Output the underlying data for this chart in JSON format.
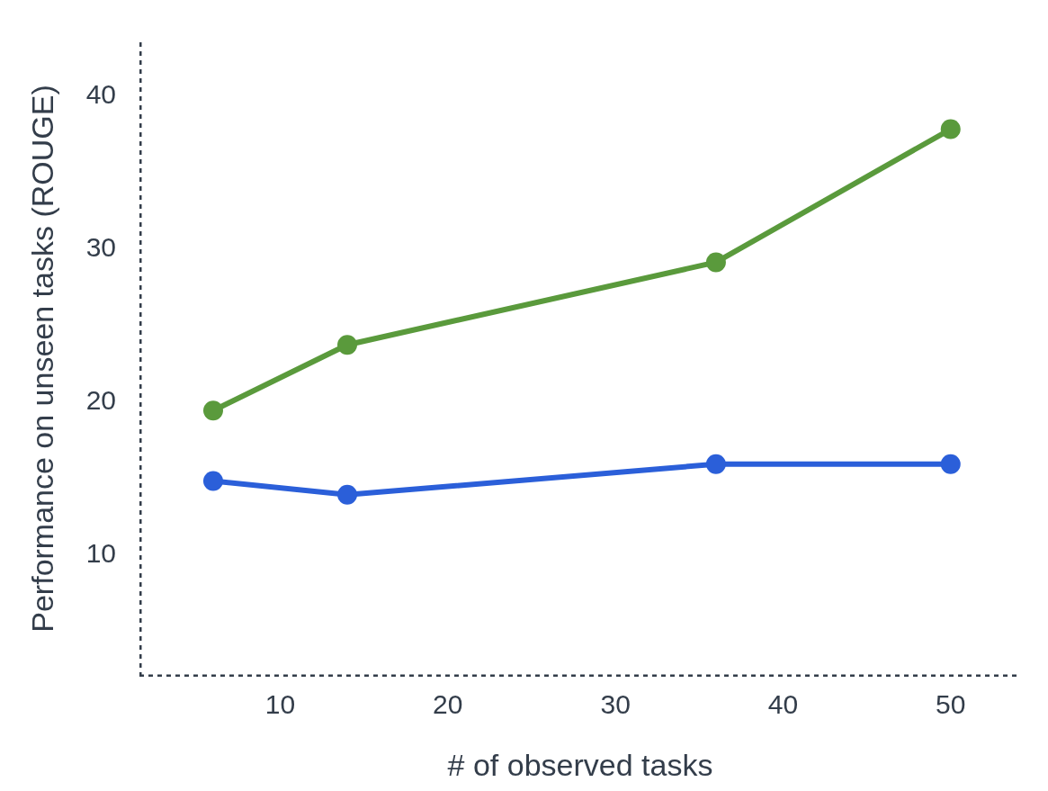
{
  "chart_data": {
    "type": "line",
    "xlabel": "# of observed tasks",
    "ylabel": "Performance on unseen tasks (ROUGE)",
    "x": [
      6,
      14,
      36,
      50
    ],
    "series": [
      {
        "color": "#5a9a3c",
        "values": [
          19.3,
          23.6,
          29.0,
          37.7
        ]
      },
      {
        "color": "#2b5fd9",
        "values": [
          14.7,
          13.8,
          15.8,
          15.8
        ]
      }
    ],
    "xlim": [
      1.6,
      54.2
    ],
    "ylim": [
      1.9,
      43.5
    ],
    "xticks": [
      10,
      20,
      30,
      40,
      50
    ],
    "yticks": [
      10,
      20,
      30,
      40
    ],
    "marker": "circle",
    "line_style": "solid"
  }
}
